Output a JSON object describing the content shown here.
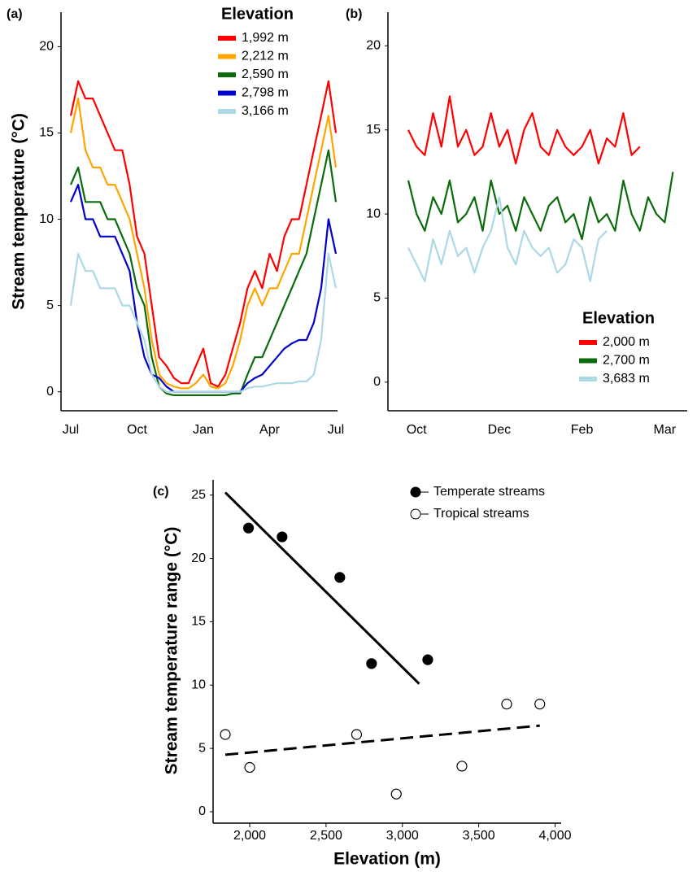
{
  "chart_data": [
    {
      "type": "line",
      "panel_label": "(a)",
      "ylabel": "Stream temperature (°C)",
      "categories": [
        "Jul",
        null,
        null,
        null,
        null,
        null,
        null,
        null,
        null,
        "Oct",
        null,
        null,
        null,
        null,
        null,
        null,
        null,
        null,
        "Jan",
        null,
        null,
        null,
        null,
        null,
        null,
        null,
        null,
        "Apr",
        null,
        null,
        null,
        null,
        null,
        null,
        null,
        null,
        "Jul"
      ],
      "ylim": [
        -1.1,
        22
      ],
      "yticks": [
        0,
        5,
        10,
        15,
        20
      ],
      "legend_title": "Elevation",
      "legend": "top right",
      "series": [
        {
          "name": "1,992 m",
          "color": "#ff0000",
          "values": [
            16,
            18,
            17,
            17,
            16,
            15,
            14,
            14,
            12,
            9,
            8,
            5,
            2,
            1.5,
            0.8,
            0.5,
            0.5,
            1.5,
            2.5,
            0.5,
            0.3,
            1,
            2.5,
            4,
            6,
            7,
            6,
            8,
            7,
            9,
            10,
            10,
            12,
            14,
            16,
            18,
            15
          ]
        },
        {
          "name": "2,212 m",
          "color": "#ffa500",
          "values": [
            15,
            17,
            14,
            13,
            13,
            12,
            12,
            11,
            10,
            8,
            6,
            3,
            1,
            0.5,
            0.3,
            0.2,
            0.2,
            0.5,
            1,
            0.3,
            0.2,
            0.5,
            1.5,
            3,
            5,
            6,
            5,
            6,
            6,
            7,
            8,
            8,
            10,
            12,
            14,
            16,
            13
          ]
        },
        {
          "name": "2,590 m",
          "color": "#0a6b0a",
          "values": [
            12,
            13,
            11,
            11,
            11,
            10,
            10,
            9,
            8,
            6,
            5,
            2,
            0.3,
            -0.1,
            -0.2,
            -0.2,
            -0.2,
            -0.2,
            -0.2,
            -0.2,
            -0.2,
            -0.2,
            -0.1,
            -0.1,
            1,
            2,
            2,
            3,
            4,
            5,
            6,
            7,
            8,
            10,
            12,
            14,
            11
          ]
        },
        {
          "name": "2,798 m",
          "color": "#0000cd",
          "values": [
            11,
            12,
            10,
            10,
            9,
            9,
            9,
            8,
            7,
            4,
            2,
            1,
            0.8,
            0.3,
            0,
            0,
            0,
            0,
            0,
            0,
            0,
            0,
            0,
            0,
            0.5,
            0.8,
            1,
            1.5,
            2,
            2.5,
            2.8,
            3,
            3,
            4,
            6,
            10,
            8
          ]
        },
        {
          "name": "3,166 m",
          "color": "#add8e6",
          "values": [
            5,
            8,
            7,
            7,
            6,
            6,
            6,
            5,
            5,
            4,
            3,
            1,
            0.3,
            0,
            0,
            0,
            0,
            0,
            0,
            0,
            0,
            0,
            0,
            0,
            0.2,
            0.3,
            0.3,
            0.4,
            0.5,
            0.5,
            0.5,
            0.6,
            0.6,
            1,
            3,
            8,
            6
          ]
        }
      ]
    },
    {
      "type": "line",
      "panel_label": "(b)",
      "categories": [
        null,
        "Oct",
        null,
        null,
        null,
        null,
        null,
        null,
        null,
        null,
        null,
        "Dec",
        null,
        null,
        null,
        null,
        null,
        null,
        null,
        null,
        null,
        "Feb",
        null,
        null,
        null,
        null,
        null,
        null,
        null,
        null,
        null,
        "Mar",
        null
      ],
      "ylim": [
        -1.7,
        22
      ],
      "yticks": [
        0,
        5,
        10,
        15,
        20
      ],
      "legend_title": "Elevation",
      "legend": "bottom right",
      "series": [
        {
          "name": "2,000 m",
          "color": "#ff0000",
          "values": [
            15,
            14,
            13.5,
            16,
            14,
            17,
            14,
            15,
            13.5,
            14,
            16,
            14,
            15,
            13,
            15,
            16,
            14,
            13.5,
            15,
            14,
            13.5,
            14,
            15,
            13,
            14.5,
            14,
            16,
            13.5,
            14,
            null,
            null,
            null,
            null
          ]
        },
        {
          "name": "2,700 m",
          "color": "#0a6b0a",
          "values": [
            12,
            10,
            9,
            11,
            10,
            12,
            9.5,
            10,
            11,
            9,
            12,
            10,
            10.5,
            9,
            11,
            10,
            9,
            10.5,
            11,
            9.5,
            10,
            8.5,
            11,
            9.5,
            10,
            9,
            12,
            10,
            9,
            11,
            10,
            9.5,
            12.5
          ]
        },
        {
          "name": "3,683 m",
          "color": "#add8e6",
          "values": [
            8,
            7,
            6,
            8.5,
            7,
            9,
            7.5,
            8,
            6.5,
            8,
            9,
            11,
            8,
            7,
            9,
            8,
            7.5,
            8,
            6.5,
            7,
            8.5,
            8,
            6,
            8.5,
            9,
            null,
            null,
            null,
            null,
            null,
            null,
            null,
            null
          ]
        }
      ]
    },
    {
      "type": "scatter",
      "panel_label": "(c)",
      "xlabel": "Elevation (m)",
      "ylabel": "Stream temperature range (°C)",
      "xlim": [
        1760,
        4040
      ],
      "xticks": [
        {
          "value": 2000,
          "label": "2,000"
        },
        {
          "value": 2500,
          "label": "2,500"
        },
        {
          "value": 3000,
          "label": "3,000"
        },
        {
          "value": 3500,
          "label": "3,500"
        },
        {
          "value": 4000,
          "label": "4,000"
        }
      ],
      "ylim": [
        -0.9,
        26.2
      ],
      "yticks": [
        0,
        5,
        10,
        15,
        20,
        25
      ],
      "legend": "top right",
      "series": [
        {
          "name": "Temperate streams",
          "color": "#000000",
          "marker": "filled",
          "x": [
            1992,
            2212,
            2590,
            2798,
            3166
          ],
          "values": [
            22.4,
            21.7,
            18.5,
            11.7,
            12
          ],
          "fit": {
            "x": [
              1840,
              3110
            ],
            "values": [
              25.2,
              10.1
            ],
            "dash": false
          }
        },
        {
          "name": "Tropical streams",
          "color": "#000000",
          "marker": "open",
          "x": [
            1840,
            2000,
            2700,
            2960,
            3390,
            3683,
            3900
          ],
          "values": [
            6.1,
            3.5,
            6.1,
            1.4,
            3.6,
            8.5,
            8.5
          ],
          "fit": {
            "x": [
              1840,
              3900
            ],
            "values": [
              4.5,
              6.8
            ],
            "dash": true
          }
        }
      ]
    }
  ]
}
